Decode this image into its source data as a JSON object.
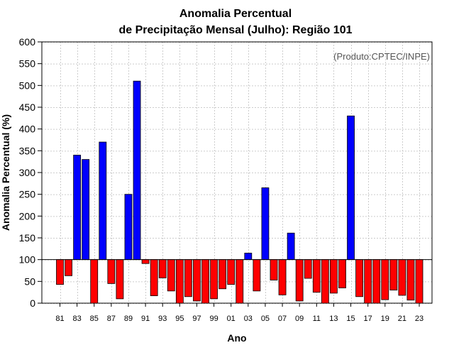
{
  "chart_data": {
    "type": "bar",
    "title": "Anomalia Percentual",
    "subtitle": "de Precipitação Mensal (Julho): Região 101",
    "xlabel": "Ano",
    "ylabel": "Anomalia Percentual (%)",
    "credit": "(Produto:CPTEC/INPE)",
    "ylim": [
      0,
      600
    ],
    "yticks": [
      0,
      50,
      100,
      150,
      200,
      250,
      300,
      350,
      400,
      450,
      500,
      550,
      600
    ],
    "baseline": 100,
    "grid": true,
    "colors": {
      "above": "#0000ff",
      "below": "#ff0000",
      "edge": "#000000"
    },
    "categories": [
      "81",
      "82",
      "83",
      "84",
      "85",
      "86",
      "87",
      "88",
      "89",
      "90",
      "91",
      "92",
      "93",
      "94",
      "95",
      "96",
      "97",
      "98",
      "99",
      "00",
      "01",
      "02",
      "03",
      "04",
      "05",
      "06",
      "07",
      "08",
      "09",
      "10",
      "11",
      "12",
      "13",
      "14",
      "15",
      "16",
      "17",
      "18",
      "19",
      "20",
      "21",
      "22",
      "23"
    ],
    "xtick_labels": [
      "81",
      "83",
      "85",
      "87",
      "89",
      "91",
      "93",
      "95",
      "97",
      "99",
      "01",
      "03",
      "05",
      "07",
      "09",
      "11",
      "13",
      "15",
      "17",
      "19",
      "21",
      "23"
    ],
    "values": [
      43,
      63,
      340,
      330,
      0,
      370,
      45,
      10,
      250,
      510,
      91,
      17,
      58,
      28,
      0,
      15,
      5,
      0,
      10,
      33,
      43,
      0,
      115,
      28,
      265,
      53,
      19,
      161,
      5,
      57,
      25,
      0,
      23,
      35,
      430,
      15,
      0,
      0,
      8,
      30,
      18,
      7,
      0
    ]
  }
}
